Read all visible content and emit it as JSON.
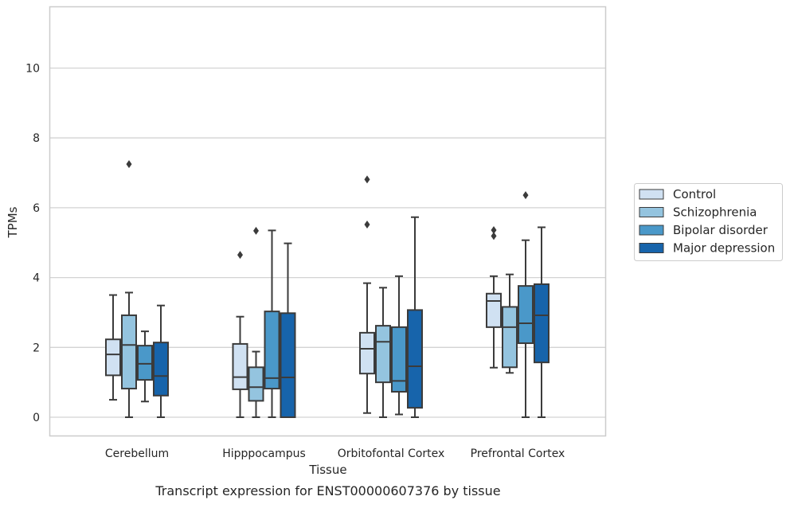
{
  "chart_data": {
    "type": "box",
    "title": "",
    "caption": "Transcript expression for ENST00000607376 by tissue",
    "xlabel": "Tissue",
    "ylabel": "TPMs",
    "ylim": [
      -0.55,
      11.8
    ],
    "yticks": [
      0,
      2,
      4,
      6,
      8,
      10
    ],
    "categories": [
      "Cerebellum",
      "Hipppocampus",
      "Orbitofontal Cortex",
      "Prefrontal Cortex"
    ],
    "grid": "horizontal",
    "legend_position": "right",
    "series": [
      {
        "name": "Control",
        "color": "#d0e1f2",
        "boxes": [
          {
            "min": 0.5,
            "q1": 1.2,
            "median": 1.8,
            "q3": 2.23,
            "max": 3.5,
            "outliers": []
          },
          {
            "min": 0.0,
            "q1": 0.8,
            "median": 1.15,
            "q3": 2.1,
            "max": 2.88,
            "outliers": [
              4.65
            ]
          },
          {
            "min": 0.12,
            "q1": 1.25,
            "median": 1.96,
            "q3": 2.42,
            "max": 3.84,
            "outliers": [
              5.52,
              6.81
            ]
          },
          {
            "min": 1.42,
            "q1": 2.58,
            "median": 3.33,
            "q3": 3.54,
            "max": 4.04,
            "outliers": [
              5.19,
              5.36
            ]
          }
        ]
      },
      {
        "name": "Schizophrenia",
        "color": "#94c4df",
        "boxes": [
          {
            "min": 0.0,
            "q1": 0.82,
            "median": 2.07,
            "q3": 2.92,
            "max": 3.57,
            "outliers": [
              7.25
            ]
          },
          {
            "min": 0.0,
            "q1": 0.47,
            "median": 0.86,
            "q3": 1.43,
            "max": 1.88,
            "outliers": [
              5.34
            ]
          },
          {
            "min": 0.0,
            "q1": 1.0,
            "median": 2.16,
            "q3": 2.62,
            "max": 3.71,
            "outliers": []
          },
          {
            "min": 1.27,
            "q1": 1.43,
            "median": 2.58,
            "q3": 3.16,
            "max": 4.09,
            "outliers": []
          }
        ]
      },
      {
        "name": "Bipolar disorder",
        "color": "#4a98c9",
        "boxes": [
          {
            "min": 0.45,
            "q1": 1.07,
            "median": 1.53,
            "q3": 2.05,
            "max": 2.46,
            "outliers": []
          },
          {
            "min": 0.0,
            "q1": 0.82,
            "median": 1.12,
            "q3": 3.03,
            "max": 5.35,
            "outliers": []
          },
          {
            "min": 0.08,
            "q1": 0.73,
            "median": 1.04,
            "q3": 2.58,
            "max": 4.04,
            "outliers": []
          },
          {
            "min": 0.0,
            "q1": 2.12,
            "median": 2.69,
            "q3": 3.76,
            "max": 5.07,
            "outliers": [
              6.36
            ]
          }
        ]
      },
      {
        "name": "Major depression",
        "color": "#1764ab",
        "boxes": [
          {
            "min": 0.0,
            "q1": 0.62,
            "median": 1.18,
            "q3": 2.14,
            "max": 3.2,
            "outliers": []
          },
          {
            "min": 0.0,
            "q1": 0.0,
            "median": 1.14,
            "q3": 2.98,
            "max": 4.98,
            "outliers": []
          },
          {
            "min": 0.0,
            "q1": 0.27,
            "median": 1.46,
            "q3": 3.07,
            "max": 5.73,
            "outliers": []
          },
          {
            "min": 0.0,
            "q1": 1.57,
            "median": 2.92,
            "q3": 3.81,
            "max": 5.44,
            "outliers": []
          }
        ]
      }
    ]
  },
  "style": {
    "edge_color": "#3b3b3b",
    "grid_color": "#d3d3d3",
    "frame_color": "#cccccc"
  }
}
